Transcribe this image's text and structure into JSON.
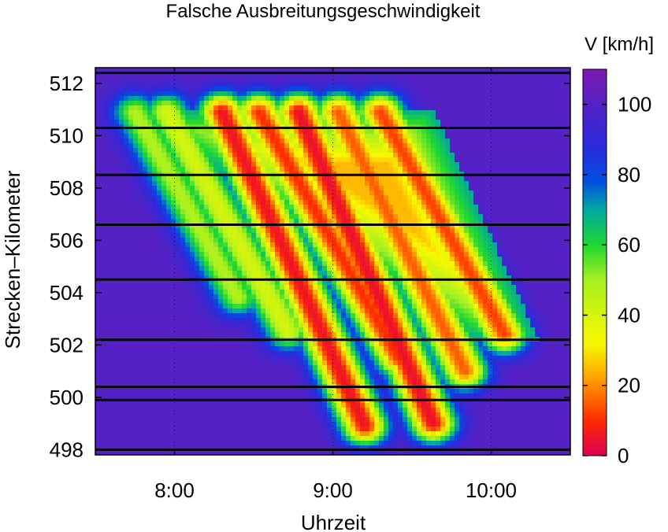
{
  "chart_data": {
    "type": "heatmap",
    "title": "Falsche Ausbreitungsgeschwindigkeit",
    "xlabel": "Uhrzeit",
    "ylabel": "Strecken–Kilometer",
    "colorbar_label": "V [km/h]",
    "xlim": [
      "07:30",
      "10:30"
    ],
    "ylim": [
      497.8,
      512.6
    ],
    "x_ticks": [
      "8:00",
      "9:00",
      "10:00"
    ],
    "y_ticks": [
      498,
      500,
      502,
      504,
      506,
      508,
      510,
      512
    ],
    "colorbar_range": [
      0,
      110
    ],
    "colorbar_ticks": [
      0,
      20,
      40,
      60,
      80,
      100
    ],
    "colormap": [
      {
        "v": 0,
        "color": "#dd0055"
      },
      {
        "v": 10,
        "color": "#ff2a00"
      },
      {
        "v": 22,
        "color": "#ffa000"
      },
      {
        "v": 32,
        "color": "#f8f800"
      },
      {
        "v": 50,
        "color": "#a8f020"
      },
      {
        "v": 60,
        "color": "#20d830"
      },
      {
        "v": 70,
        "color": "#00a8a0"
      },
      {
        "v": 78,
        "color": "#0050e0"
      },
      {
        "v": 88,
        "color": "#2a2adc"
      },
      {
        "v": 110,
        "color": "#7a1ab0"
      }
    ],
    "background_speed": 100,
    "congestion_region": {
      "time": [
        "07:41",
        "09:38",
        "10:18",
        "09:53"
      ],
      "km": [
        511.0,
        511.0,
        502.2,
        502.2
      ],
      "speed_min": 25
    },
    "congestion_waves": [
      {
        "start_time": "07:45",
        "start_km": 510.9,
        "end_time": "08:24",
        "end_km": 503.8,
        "min_speed": 48
      },
      {
        "start_time": "07:57",
        "start_km": 510.9,
        "end_time": "08:43",
        "end_km": 502.5,
        "min_speed": 40
      },
      {
        "start_time": "08:18",
        "start_km": 510.9,
        "end_time": "09:12",
        "end_km": 498.9,
        "min_speed": 5
      },
      {
        "start_time": "08:32",
        "start_km": 510.9,
        "end_time": "09:25",
        "end_km": 501.5,
        "min_speed": 10
      },
      {
        "start_time": "08:47",
        "start_km": 510.9,
        "end_time": "09:38",
        "end_km": 499.0,
        "min_speed": 4
      },
      {
        "start_time": "09:02",
        "start_km": 510.9,
        "end_time": "09:50",
        "end_km": 501.0,
        "min_speed": 15
      },
      {
        "start_time": "09:18",
        "start_km": 510.9,
        "end_time": "10:05",
        "end_km": 502.4,
        "min_speed": 12
      }
    ],
    "detector_positions_km": [
      512.4,
      510.3,
      508.5,
      506.6,
      504.5,
      502.2,
      500.4,
      499.9,
      498.0
    ]
  }
}
